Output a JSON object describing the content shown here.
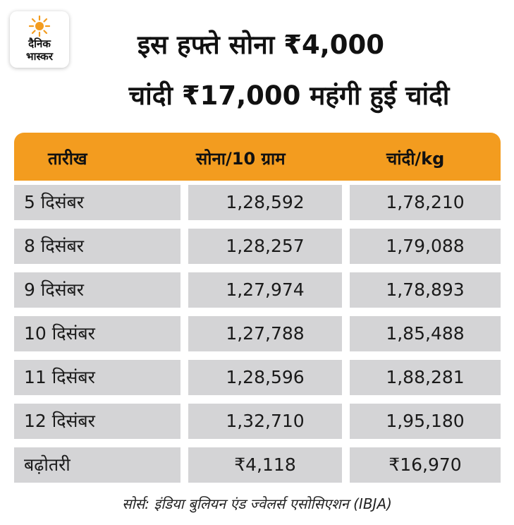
{
  "logo": {
    "line1": "दैनिक",
    "line2": "भास्कर",
    "sun_color": "#f39c1f"
  },
  "title": {
    "line1": "इस हफ्ते सोना ₹4,000",
    "line2": "चांदी ₹17,000 महंगी हुई चांदी"
  },
  "table": {
    "header_color": "#f39c1f",
    "cell_color": "#d4d4d6",
    "headers": [
      "तारीख",
      "सोना/10 ग्राम",
      "चांदी/kg"
    ],
    "rows": [
      [
        "5 दिसंबर",
        "1,28,592",
        "1,78,210"
      ],
      [
        "8 दिसंबर",
        "1,28,257",
        "1,79,088"
      ],
      [
        "9 दिसंबर",
        "1,27,974",
        "1,78,893"
      ],
      [
        "10 दिसंबर",
        "1,27,788",
        "1,85,488"
      ],
      [
        "11 दिसंबर",
        "1,28,596",
        "1,88,281"
      ],
      [
        "12 दिसंबर",
        "1,32,710",
        "1,95,180"
      ],
      [
        "बढ़ोतरी",
        "₹4,118",
        "₹16,970"
      ]
    ]
  },
  "source": "सोर्स: इंडिया बुलियन एंड ज्वेलर्स एसोसिएशन (IBJA)"
}
